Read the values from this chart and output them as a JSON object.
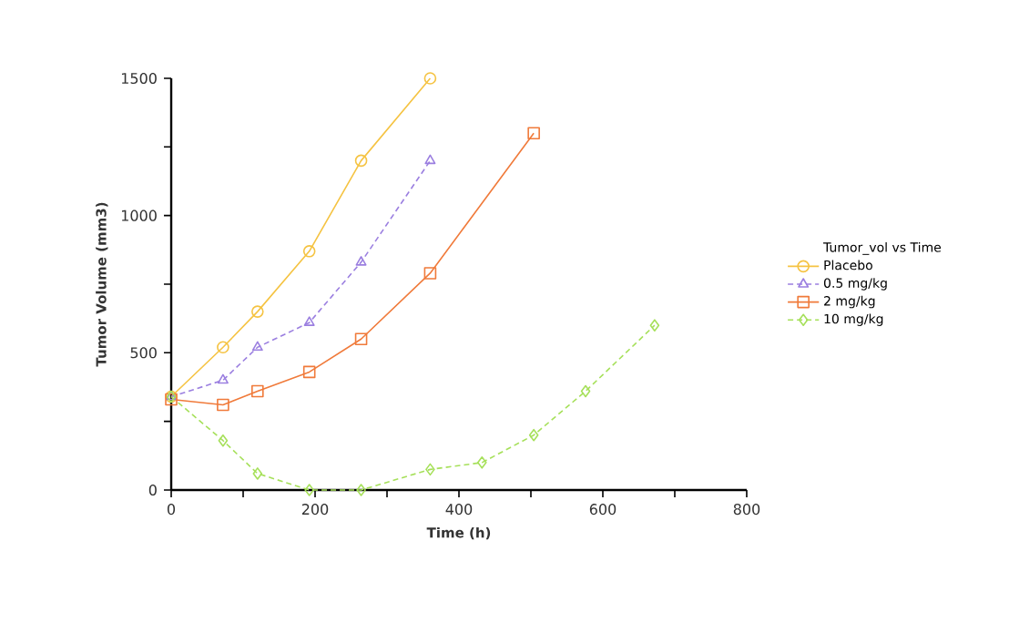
{
  "chart_data": {
    "type": "line",
    "xlabel": "Time (h)",
    "ylabel": "Tumor Volume (mm3)",
    "legend_title": "Tumor_vol vs Time",
    "xlim": [
      0,
      800
    ],
    "ylim": [
      0,
      1500
    ],
    "xticks": [
      0,
      {
        "value": 100,
        "label": null
      },
      200,
      {
        "value": 300,
        "label": null
      },
      400,
      {
        "value": 500,
        "label": null
      },
      600,
      {
        "value": 700,
        "label": null
      },
      800
    ],
    "yticks": [
      0,
      {
        "value": 250,
        "label": null
      },
      500,
      {
        "value": 750,
        "label": null
      },
      1000,
      {
        "value": 1250,
        "label": null
      },
      1500
    ],
    "grid": false,
    "legend": "right",
    "series": [
      {
        "name": "Placebo",
        "color": "#f5c342",
        "marker": "circle",
        "line_style": "solid",
        "x": [
          0,
          72,
          120,
          192,
          264,
          360
        ],
        "values": [
          340,
          520,
          650,
          870,
          1200,
          1500
        ]
      },
      {
        "name": "0.5 mg/kg",
        "color": "#9b7fe0",
        "marker": "triangle",
        "line_style": "dashed",
        "x": [
          0,
          72,
          120,
          192,
          264,
          360
        ],
        "values": [
          340,
          400,
          520,
          610,
          830,
          1200
        ]
      },
      {
        "name": "2 mg/kg",
        "color": "#f07a3a",
        "marker": "square",
        "line_style": "solid",
        "x": [
          0,
          72,
          120,
          192,
          264,
          360,
          504
        ],
        "values": [
          330,
          310,
          360,
          430,
          550,
          790,
          1300
        ]
      },
      {
        "name": "10 mg/kg",
        "color": "#a6e05a",
        "marker": "diamond",
        "line_style": "dashed",
        "x": [
          0,
          72,
          120,
          192,
          264,
          360,
          432,
          504,
          576,
          672
        ],
        "values": [
          340,
          180,
          60,
          0,
          0,
          75,
          100,
          200,
          360,
          600
        ]
      }
    ]
  }
}
